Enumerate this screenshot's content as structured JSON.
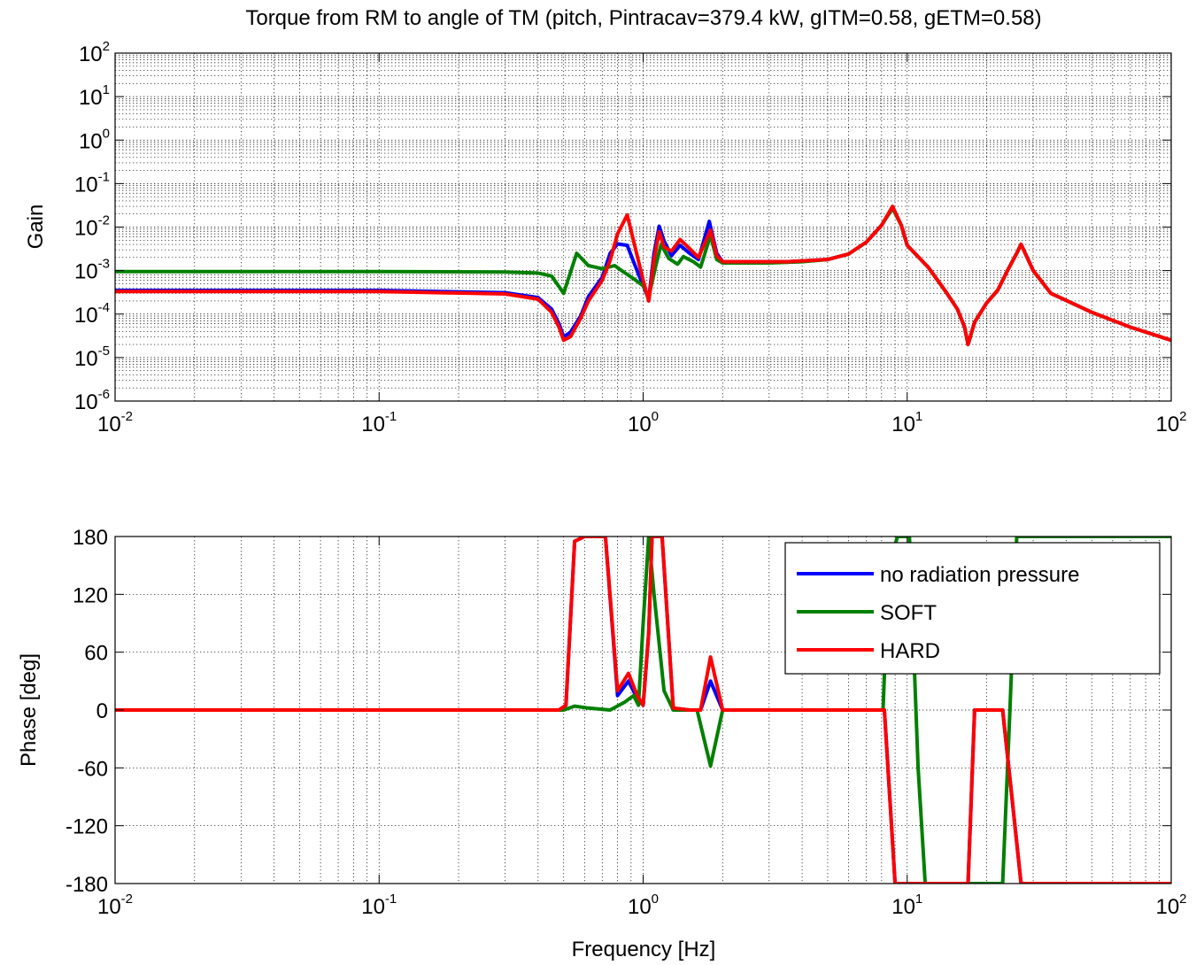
{
  "chart_data": [
    {
      "type": "line",
      "title": "Torque from RM to angle of TM (pitch, Pintracav=379.4 kW, gITM=0.58, gETM=0.58)",
      "xlabel": "",
      "ylabel": "Gain",
      "xscale": "log",
      "yscale": "log",
      "xlim": [
        0.01,
        100
      ],
      "ylim": [
        1e-06,
        100
      ],
      "grid": true,
      "x_tick_labels": [
        {
          "base": "10",
          "exp": "-2"
        },
        {
          "base": "10",
          "exp": "-1"
        },
        {
          "base": "10",
          "exp": "0"
        },
        {
          "base": "10",
          "exp": "1"
        },
        {
          "base": "10",
          "exp": "2"
        }
      ],
      "y_tick_labels": [
        {
          "base": "10",
          "exp": "-6"
        },
        {
          "base": "10",
          "exp": "-5"
        },
        {
          "base": "10",
          "exp": "-4"
        },
        {
          "base": "10",
          "exp": "-3"
        },
        {
          "base": "10",
          "exp": "-2"
        },
        {
          "base": "10",
          "exp": "-1"
        },
        {
          "base": "10",
          "exp": "0"
        },
        {
          "base": "10",
          "exp": "1"
        },
        {
          "base": "10",
          "exp": "2"
        }
      ],
      "series": [
        {
          "name": "no radiation pressure",
          "color": "#0000ff",
          "points": [
            [
              0.01,
              0.00035
            ],
            [
              0.1,
              0.00035
            ],
            [
              0.3,
              0.00031
            ],
            [
              0.4,
              0.00024
            ],
            [
              0.45,
              0.00013
            ],
            [
              0.48,
              6e-05
            ],
            [
              0.5,
              3e-05
            ],
            [
              0.53,
              3.8e-05
            ],
            [
              0.58,
              9e-05
            ],
            [
              0.62,
              0.00025
            ],
            [
              0.7,
              0.0007
            ],
            [
              0.75,
              0.0025
            ],
            [
              0.8,
              0.0041
            ],
            [
              0.87,
              0.0038
            ],
            [
              0.92,
              0.0016
            ],
            [
              1.0,
              0.00045
            ],
            [
              1.05,
              0.00022
            ],
            [
              1.1,
              0.0025
            ],
            [
              1.15,
              0.0105
            ],
            [
              1.2,
              0.0048
            ],
            [
              1.28,
              0.0022
            ],
            [
              1.38,
              0.0038
            ],
            [
              1.5,
              0.0025
            ],
            [
              1.62,
              0.0018
            ],
            [
              1.78,
              0.0135
            ],
            [
              1.9,
              0.0025
            ],
            [
              2.0,
              0.0016
            ],
            [
              2.5,
              0.0016
            ],
            [
              3.5,
              0.0016
            ],
            [
              5,
              0.0018
            ],
            [
              6,
              0.0024
            ],
            [
              7,
              0.0045
            ],
            [
              8,
              0.011
            ],
            [
              8.8,
              0.029
            ],
            [
              9.5,
              0.011
            ],
            [
              10,
              0.0038
            ],
            [
              12,
              0.0012
            ],
            [
              14,
              0.00033
            ],
            [
              15.5,
              0.00013
            ],
            [
              16.5,
              5e-05
            ],
            [
              17,
              2e-05
            ],
            [
              18,
              6.5e-05
            ],
            [
              20,
              0.00018
            ],
            [
              22,
              0.00035
            ],
            [
              24,
              0.001
            ],
            [
              26,
              0.0025
            ],
            [
              27,
              0.004
            ],
            [
              28,
              0.0025
            ],
            [
              30,
              0.001
            ],
            [
              35,
              0.0003
            ],
            [
              50,
              0.00011
            ],
            [
              70,
              5e-05
            ],
            [
              100,
              2.5e-05
            ]
          ]
        },
        {
          "name": "SOFT",
          "color": "#008000",
          "points": [
            [
              0.01,
              0.00095
            ],
            [
              0.1,
              0.00095
            ],
            [
              0.3,
              0.00093
            ],
            [
              0.4,
              0.00088
            ],
            [
              0.45,
              0.00075
            ],
            [
              0.5,
              0.0003
            ],
            [
              0.56,
              0.0025
            ],
            [
              0.62,
              0.0013
            ],
            [
              0.7,
              0.0011
            ],
            [
              0.78,
              0.0013
            ],
            [
              0.85,
              0.0009
            ],
            [
              0.92,
              0.00065
            ],
            [
              1.0,
              0.00045
            ],
            [
              1.05,
              0.00025
            ],
            [
              1.12,
              0.0014
            ],
            [
              1.17,
              0.004
            ],
            [
              1.25,
              0.0019
            ],
            [
              1.35,
              0.0014
            ],
            [
              1.42,
              0.0021
            ],
            [
              1.55,
              0.0016
            ],
            [
              1.65,
              0.0012
            ],
            [
              1.8,
              0.0065
            ],
            [
              1.9,
              0.0018
            ],
            [
              2.0,
              0.0015
            ],
            [
              3,
              0.0015
            ],
            [
              4,
              0.0016
            ],
            [
              5,
              0.0018
            ],
            [
              6,
              0.0024
            ],
            [
              7,
              0.0045
            ],
            [
              8,
              0.011
            ],
            [
              8.8,
              0.027
            ],
            [
              9.5,
              0.011
            ],
            [
              10,
              0.0038
            ],
            [
              12,
              0.0012
            ],
            [
              14,
              0.00033
            ],
            [
              15.5,
              0.00013
            ],
            [
              16.5,
              5e-05
            ],
            [
              17,
              2e-05
            ],
            [
              18,
              6.5e-05
            ],
            [
              20,
              0.00018
            ],
            [
              22,
              0.00035
            ],
            [
              24,
              0.001
            ],
            [
              26,
              0.0025
            ],
            [
              27,
              0.004
            ],
            [
              28,
              0.0025
            ],
            [
              30,
              0.001
            ],
            [
              35,
              0.0003
            ],
            [
              50,
              0.00011
            ],
            [
              70,
              5e-05
            ],
            [
              100,
              2.5e-05
            ]
          ]
        },
        {
          "name": "HARD",
          "color": "#ff0000",
          "points": [
            [
              0.01,
              0.00033
            ],
            [
              0.1,
              0.00033
            ],
            [
              0.3,
              0.00029
            ],
            [
              0.4,
              0.00022
            ],
            [
              0.45,
              0.00011
            ],
            [
              0.48,
              5e-05
            ],
            [
              0.5,
              2.5e-05
            ],
            [
              0.53,
              3e-05
            ],
            [
              0.58,
              8e-05
            ],
            [
              0.62,
              0.0002
            ],
            [
              0.7,
              0.0006
            ],
            [
              0.75,
              0.0017
            ],
            [
              0.8,
              0.007
            ],
            [
              0.87,
              0.019
            ],
            [
              0.92,
              0.0048
            ],
            [
              1.0,
              0.0006
            ],
            [
              1.05,
              0.0002
            ],
            [
              1.1,
              0.0018
            ],
            [
              1.15,
              0.0078
            ],
            [
              1.2,
              0.0035
            ],
            [
              1.28,
              0.0028
            ],
            [
              1.38,
              0.0052
            ],
            [
              1.5,
              0.0032
            ],
            [
              1.62,
              0.002
            ],
            [
              1.8,
              0.0085
            ],
            [
              1.9,
              0.0022
            ],
            [
              2.0,
              0.0016
            ],
            [
              2.5,
              0.0016
            ],
            [
              3.5,
              0.0016
            ],
            [
              5,
              0.0018
            ],
            [
              6,
              0.0024
            ],
            [
              7,
              0.0045
            ],
            [
              8,
              0.011
            ],
            [
              8.8,
              0.03
            ],
            [
              9.5,
              0.011
            ],
            [
              10,
              0.0038
            ],
            [
              12,
              0.0012
            ],
            [
              14,
              0.00033
            ],
            [
              15.5,
              0.00013
            ],
            [
              16.5,
              5e-05
            ],
            [
              17,
              2e-05
            ],
            [
              18,
              6.5e-05
            ],
            [
              20,
              0.00018
            ],
            [
              22,
              0.00035
            ],
            [
              24,
              0.001
            ],
            [
              26,
              0.0025
            ],
            [
              27,
              0.004
            ],
            [
              28,
              0.0025
            ],
            [
              30,
              0.001
            ],
            [
              35,
              0.0003
            ],
            [
              50,
              0.00011
            ],
            [
              70,
              5e-05
            ],
            [
              100,
              2.5e-05
            ]
          ]
        }
      ]
    },
    {
      "type": "line",
      "title": "",
      "xlabel": "Frequency [Hz]",
      "ylabel": "Phase [deg]",
      "xscale": "log",
      "yscale": "linear",
      "xlim": [
        0.01,
        100
      ],
      "ylim": [
        -180,
        180
      ],
      "grid": true,
      "legend_position": "top-right",
      "x_tick_labels": [
        {
          "base": "10",
          "exp": "-2"
        },
        {
          "base": "10",
          "exp": "-1"
        },
        {
          "base": "10",
          "exp": "0"
        },
        {
          "base": "10",
          "exp": "1"
        },
        {
          "base": "10",
          "exp": "2"
        }
      ],
      "y_ticks": [
        "-180",
        "-120",
        "-60",
        "0",
        "60",
        "120",
        "180"
      ],
      "series": [
        {
          "name": "no radiation pressure",
          "color": "#0000ff",
          "points": [
            [
              0.01,
              0
            ],
            [
              0.1,
              0
            ],
            [
              0.48,
              0
            ],
            [
              0.51,
              5
            ],
            [
              0.55,
              175
            ],
            [
              0.6,
              180
            ],
            [
              0.72,
              180
            ],
            [
              0.8,
              15
            ],
            [
              0.88,
              30
            ],
            [
              0.95,
              12
            ],
            [
              1.0,
              5
            ],
            [
              1.05,
              80
            ],
            [
              1.08,
              180
            ],
            [
              1.18,
              180
            ],
            [
              1.3,
              2
            ],
            [
              1.5,
              0
            ],
            [
              1.65,
              0
            ],
            [
              1.8,
              30
            ],
            [
              2.0,
              0
            ],
            [
              3,
              0
            ],
            [
              8.2,
              0
            ],
            [
              9,
              -180
            ],
            [
              17,
              -180
            ],
            [
              18,
              0
            ],
            [
              23,
              0
            ],
            [
              27,
              -180
            ],
            [
              100,
              -180
            ]
          ]
        },
        {
          "name": "SOFT",
          "color": "#008000",
          "points": [
            [
              0.01,
              0
            ],
            [
              0.1,
              0
            ],
            [
              0.45,
              0
            ],
            [
              0.5,
              0
            ],
            [
              0.55,
              4
            ],
            [
              0.62,
              2
            ],
            [
              0.75,
              0
            ],
            [
              0.85,
              8
            ],
            [
              0.92,
              15
            ],
            [
              0.96,
              5
            ],
            [
              1.0,
              90
            ],
            [
              1.05,
              180
            ],
            [
              1.1,
              120
            ],
            [
              1.2,
              20
            ],
            [
              1.3,
              0
            ],
            [
              1.6,
              0
            ],
            [
              1.8,
              -58
            ],
            [
              2.0,
              0
            ],
            [
              3,
              0
            ],
            [
              8.1,
              0
            ],
            [
              8.5,
              150
            ],
            [
              9.2,
              180
            ],
            [
              10.2,
              180
            ],
            [
              11,
              -60
            ],
            [
              11.7,
              -180
            ],
            [
              23,
              -180
            ],
            [
              24.5,
              0
            ],
            [
              26,
              180
            ],
            [
              100,
              180
            ]
          ]
        },
        {
          "name": "HARD",
          "color": "#ff0000",
          "points": [
            [
              0.01,
              0
            ],
            [
              0.1,
              0
            ],
            [
              0.48,
              0
            ],
            [
              0.51,
              5
            ],
            [
              0.55,
              175
            ],
            [
              0.6,
              180
            ],
            [
              0.72,
              180
            ],
            [
              0.8,
              20
            ],
            [
              0.88,
              38
            ],
            [
              0.95,
              15
            ],
            [
              1.0,
              5
            ],
            [
              1.05,
              80
            ],
            [
              1.08,
              180
            ],
            [
              1.18,
              180
            ],
            [
              1.3,
              2
            ],
            [
              1.5,
              0
            ],
            [
              1.65,
              0
            ],
            [
              1.8,
              55
            ],
            [
              2.0,
              0
            ],
            [
              3,
              0
            ],
            [
              8.2,
              0
            ],
            [
              9,
              -180
            ],
            [
              17,
              -180
            ],
            [
              18,
              0
            ],
            [
              23,
              0
            ],
            [
              27,
              -180
            ],
            [
              100,
              -180
            ]
          ]
        }
      ]
    }
  ]
}
